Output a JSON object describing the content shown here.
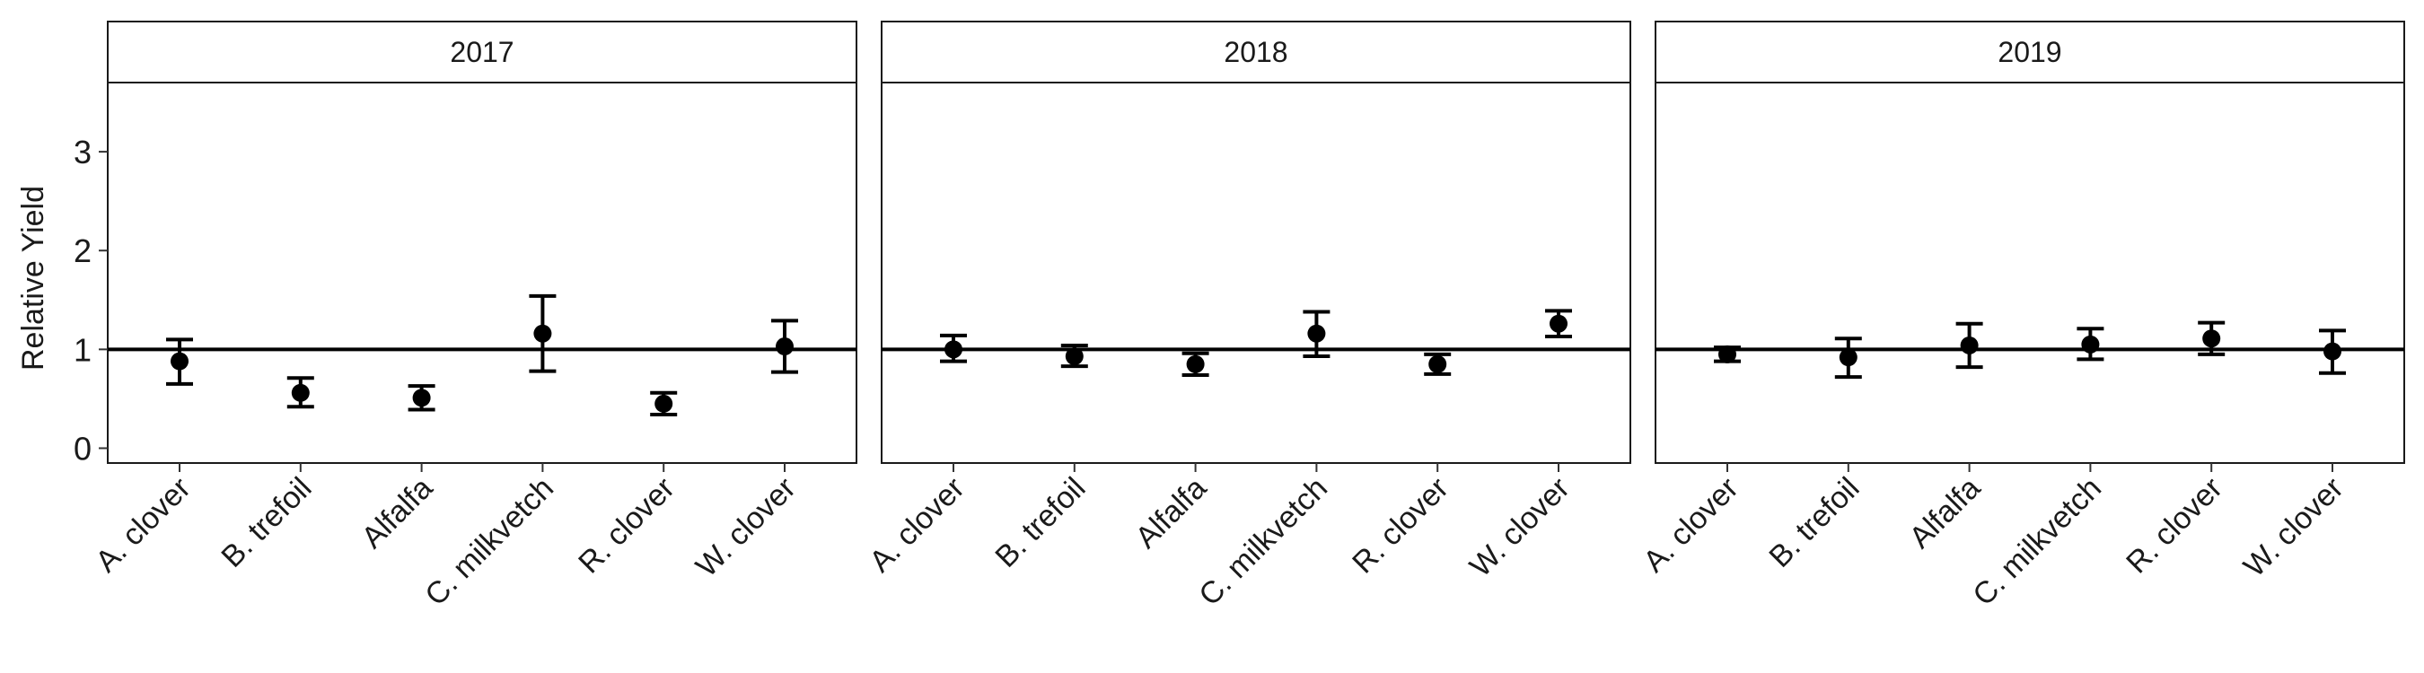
{
  "chart_data": {
    "type": "scatter",
    "ylabel": "Relative Yield",
    "xlabel": "",
    "ylim": [
      -0.15,
      3.7
    ],
    "yticks": [
      0,
      1,
      2,
      3
    ],
    "reference_line": 1,
    "grid": false,
    "categories": [
      "A. clover",
      "B. trefoil",
      "Alfalfa",
      "C. milkvetch",
      "R. clover",
      "W. clover"
    ],
    "panels": [
      {
        "label": "2017",
        "points": [
          {
            "category": "A. clover",
            "y": 0.88,
            "ymin": 0.65,
            "ymax": 1.1
          },
          {
            "category": "B. trefoil",
            "y": 0.56,
            "ymin": 0.42,
            "ymax": 0.71
          },
          {
            "category": "Alfalfa",
            "y": 0.51,
            "ymin": 0.39,
            "ymax": 0.63
          },
          {
            "category": "C. milkvetch",
            "y": 1.16,
            "ymin": 0.78,
            "ymax": 1.54
          },
          {
            "category": "R. clover",
            "y": 0.45,
            "ymin": 0.34,
            "ymax": 0.56
          },
          {
            "category": "W. clover",
            "y": 1.03,
            "ymin": 0.77,
            "ymax": 1.29
          }
        ]
      },
      {
        "label": "2018",
        "points": [
          {
            "category": "A. clover",
            "y": 1.0,
            "ymin": 0.88,
            "ymax": 1.14
          },
          {
            "category": "B. trefoil",
            "y": 0.93,
            "ymin": 0.83,
            "ymax": 1.04
          },
          {
            "category": "Alfalfa",
            "y": 0.85,
            "ymin": 0.74,
            "ymax": 0.96
          },
          {
            "category": "C. milkvetch",
            "y": 1.16,
            "ymin": 0.93,
            "ymax": 1.38
          },
          {
            "category": "R. clover",
            "y": 0.85,
            "ymin": 0.75,
            "ymax": 0.95
          },
          {
            "category": "W. clover",
            "y": 1.26,
            "ymin": 1.13,
            "ymax": 1.39
          }
        ]
      },
      {
        "label": "2019",
        "points": [
          {
            "category": "A. clover",
            "y": 0.95,
            "ymin": 0.88,
            "ymax": 1.02
          },
          {
            "category": "B. trefoil",
            "y": 0.92,
            "ymin": 0.72,
            "ymax": 1.11
          },
          {
            "category": "Alfalfa",
            "y": 1.04,
            "ymin": 0.82,
            "ymax": 1.26
          },
          {
            "category": "C. milkvetch",
            "y": 1.05,
            "ymin": 0.9,
            "ymax": 1.21
          },
          {
            "category": "R. clover",
            "y": 1.11,
            "ymin": 0.95,
            "ymax": 1.27
          },
          {
            "category": "W. clover",
            "y": 0.98,
            "ymin": 0.76,
            "ymax": 1.19
          }
        ]
      }
    ]
  }
}
